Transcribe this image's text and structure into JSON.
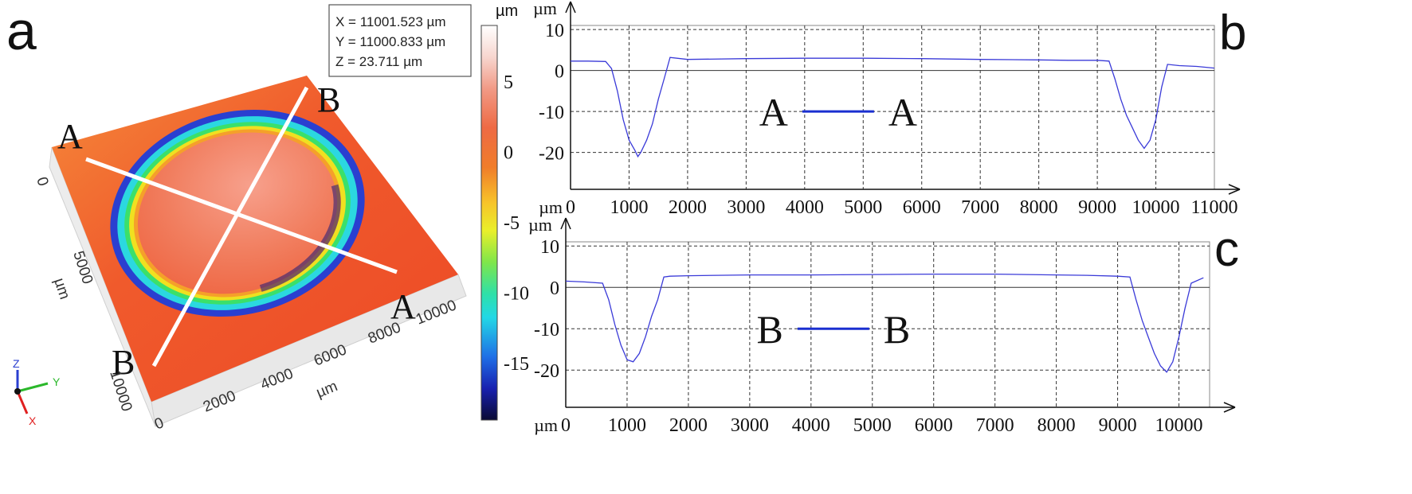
{
  "panel_a": {
    "label": "a",
    "readout": [
      "X = 11001.523 µm",
      "Y = 11000.833 µm",
      "Z = 23.711 µm"
    ],
    "section_labels": {
      "a1": "A",
      "a2": "A",
      "b1": "B",
      "b2": "B"
    },
    "x_axis": {
      "unit": "µm",
      "ticks": [
        "0",
        "2000",
        "4000",
        "6000",
        "8000",
        "10000"
      ]
    },
    "y_axis": {
      "unit": "µm",
      "ticks": [
        "0",
        "5000",
        "10000"
      ]
    },
    "colorbar": {
      "unit": "µm",
      "ticks": [
        "5",
        "0",
        "-5",
        "-10",
        "-15"
      ],
      "range": [
        -19,
        9
      ]
    },
    "triad": {
      "z": "Z",
      "y": "Y",
      "x": "X"
    },
    "colors": {
      "surface": "#f0522a",
      "ring_outer": "#1a2fd0",
      "ring_mid": "#2be8e8",
      "ring_inner": "#f4e21e"
    }
  },
  "chart_data": [
    {
      "type": "line",
      "panel_label": "b",
      "unit_x": "µm",
      "unit_y": "µm",
      "xlim": [
        0,
        11000
      ],
      "ylim": [
        -29,
        11
      ],
      "x_ticks": [
        0,
        1000,
        2000,
        3000,
        4000,
        5000,
        6000,
        7000,
        8000,
        9000,
        10000,
        11000
      ],
      "y_ticks": [
        10,
        0,
        -10,
        -20
      ],
      "legend": {
        "left": "A",
        "right": "A"
      },
      "series": [
        {
          "color": "#3a3ad8",
          "x": [
            0,
            300,
            600,
            700,
            800,
            900,
            1000,
            1100,
            1150,
            1200,
            1300,
            1400,
            1500,
            1600,
            1700,
            2000,
            3000,
            4000,
            5000,
            6000,
            7000,
            8000,
            8500,
            9000,
            9200,
            9300,
            9400,
            9500,
            9600,
            9700,
            9800,
            9900,
            10000,
            10100,
            10200,
            10400,
            10700,
            11000
          ],
          "y": [
            2.3,
            2.3,
            2.2,
            0.5,
            -5,
            -12,
            -17,
            -19.5,
            -21,
            -20,
            -17,
            -13,
            -7,
            -2,
            3.2,
            2.7,
            2.9,
            3.0,
            3.0,
            2.9,
            2.7,
            2.6,
            2.5,
            2.5,
            2.3,
            -2,
            -7,
            -11,
            -14,
            -17,
            -19,
            -17,
            -12,
            -4,
            1.5,
            1.2,
            1.0,
            0.6
          ]
        }
      ]
    },
    {
      "type": "line",
      "panel_label": "c",
      "unit_x": "µm",
      "unit_y": "µm",
      "xlim": [
        0,
        10500
      ],
      "ylim": [
        -29,
        11
      ],
      "x_ticks": [
        0,
        1000,
        2000,
        3000,
        4000,
        5000,
        6000,
        7000,
        8000,
        9000,
        10000
      ],
      "y_ticks": [
        10,
        0,
        -10,
        -20
      ],
      "legend": {
        "left": "B",
        "right": "B"
      },
      "series": [
        {
          "color": "#3a3ad8",
          "x": [
            0,
            300,
            600,
            700,
            800,
            900,
            1000,
            1100,
            1200,
            1300,
            1400,
            1500,
            1600,
            1700,
            2000,
            3000,
            4000,
            5000,
            6000,
            7000,
            8000,
            8500,
            9000,
            9200,
            9300,
            9400,
            9500,
            9600,
            9700,
            9800,
            9900,
            10000,
            10100,
            10200,
            10400
          ],
          "y": [
            1.5,
            1.3,
            1.0,
            -3,
            -9,
            -14,
            -17.5,
            -18,
            -16,
            -12,
            -7,
            -3,
            2.5,
            2.7,
            2.8,
            3.0,
            3.0,
            3.1,
            3.2,
            3.2,
            3.0,
            2.9,
            2.7,
            2.5,
            -3,
            -8,
            -12,
            -16,
            -19,
            -20.5,
            -18,
            -12,
            -5,
            1,
            2.3
          ]
        }
      ]
    }
  ]
}
